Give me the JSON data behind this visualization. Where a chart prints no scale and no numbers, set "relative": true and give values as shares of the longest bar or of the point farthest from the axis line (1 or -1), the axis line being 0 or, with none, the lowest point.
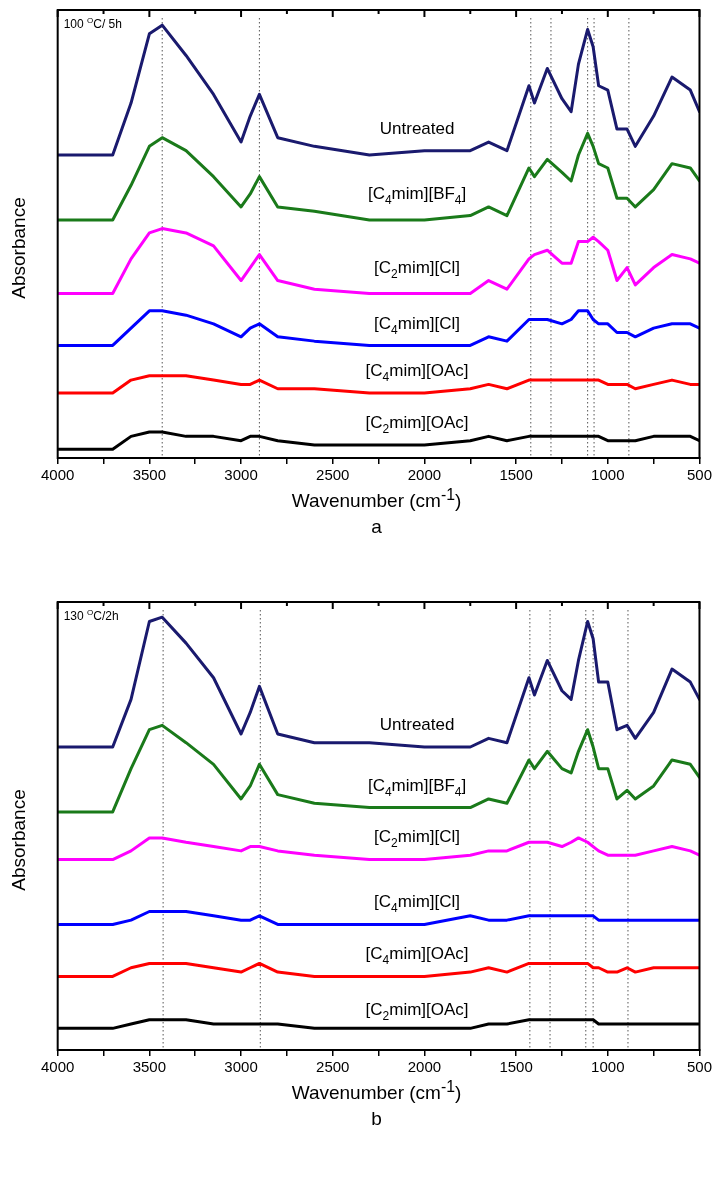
{
  "chart_data": [
    {
      "type": "line",
      "relative": true,
      "xlabel": "Wavenumber (cm$^{-1}$)",
      "ylabel": "Absorbance",
      "annotations": [
        "100 $^{O}$C/ 5h",
        "a"
      ],
      "xlim": [
        4000,
        500
      ],
      "xticks": [
        4000,
        {
          "value": 3750,
          "label": null
        },
        3500,
        {
          "value": 3250,
          "label": null
        },
        3000,
        {
          "value": 2750,
          "label": null
        },
        2500,
        {
          "value": 2250,
          "label": null
        },
        2000,
        {
          "value": 1750,
          "label": null
        },
        1500,
        {
          "value": 1250,
          "label": null
        },
        1000,
        {
          "value": 750,
          "label": null
        },
        500
      ],
      "tick_labels": "x",
      "grid": false,
      "legend": false,
      "marker": "none",
      "line_style": "solid",
      "ref_lines": [
        {
          "axis": "x",
          "value": 3430,
          "color": "#555555",
          "line_style": "dotted"
        },
        {
          "axis": "x",
          "value": 2900,
          "color": "#555555",
          "line_style": "dotted"
        },
        {
          "axis": "x",
          "value": 1420,
          "color": "#555555",
          "line_style": "dotted"
        },
        {
          "axis": "x",
          "value": 1310,
          "color": "#555555",
          "line_style": "dotted"
        },
        {
          "axis": "x",
          "value": 1110,
          "color": "#555555",
          "line_style": "dotted"
        },
        {
          "axis": "x",
          "value": 1075,
          "color": "#555555",
          "line_style": "dotted"
        },
        {
          "axis": "x",
          "value": 885,
          "color": "#555555",
          "line_style": "dotted"
        }
      ],
      "x": [
        4000,
        3700,
        3600,
        3500,
        3430,
        3300,
        3150,
        3000,
        2950,
        2900,
        2800,
        2600,
        2300,
        2000,
        1750,
        1650,
        1550,
        1430,
        1400,
        1330,
        1250,
        1200,
        1160,
        1110,
        1080,
        1050,
        1000,
        950,
        895,
        850,
        750,
        650,
        550,
        500
      ],
      "series": [
        {
          "name": "Untreated",
          "color": "#1a1a6e",
          "values": [
            0.7,
            0.7,
            0.82,
            0.98,
            1.0,
            0.93,
            0.84,
            0.73,
            0.79,
            0.84,
            0.74,
            0.72,
            0.7,
            0.71,
            0.71,
            0.73,
            0.71,
            0.86,
            0.82,
            0.9,
            0.83,
            0.8,
            0.91,
            0.99,
            0.95,
            0.86,
            0.85,
            0.76,
            0.76,
            0.72,
            0.79,
            0.88,
            0.85,
            0.8
          ]
        },
        {
          "name": "[C$_{4}$mim][BF$_{4}$]",
          "color": "#1a7a1a",
          "values": [
            0.55,
            0.55,
            0.63,
            0.72,
            0.74,
            0.71,
            0.65,
            0.58,
            0.61,
            0.65,
            0.58,
            0.57,
            0.55,
            0.55,
            0.56,
            0.58,
            0.56,
            0.67,
            0.65,
            0.69,
            0.66,
            0.64,
            0.7,
            0.75,
            0.72,
            0.68,
            0.67,
            0.6,
            0.6,
            0.58,
            0.62,
            0.68,
            0.67,
            0.64
          ]
        },
        {
          "name": "[C$_{2}$mim][Cl]",
          "color": "#ff00ff",
          "values": [
            0.38,
            0.38,
            0.46,
            0.52,
            0.53,
            0.52,
            0.49,
            0.41,
            0.44,
            0.47,
            0.41,
            0.39,
            0.38,
            0.38,
            0.38,
            0.41,
            0.39,
            0.46,
            0.47,
            0.48,
            0.45,
            0.45,
            0.5,
            0.5,
            0.51,
            0.5,
            0.48,
            0.41,
            0.44,
            0.4,
            0.44,
            0.47,
            0.46,
            0.45
          ]
        },
        {
          "name": "[C$_{4}$mim][Cl]",
          "color": "#0000ff",
          "values": [
            0.26,
            0.26,
            0.3,
            0.34,
            0.34,
            0.33,
            0.31,
            0.28,
            0.3,
            0.31,
            0.28,
            0.27,
            0.26,
            0.26,
            0.26,
            0.28,
            0.27,
            0.32,
            0.32,
            0.32,
            0.31,
            0.32,
            0.34,
            0.34,
            0.32,
            0.31,
            0.31,
            0.29,
            0.29,
            0.28,
            0.3,
            0.31,
            0.31,
            0.3
          ]
        },
        {
          "name": "[C$_{4}$mim][OAc]",
          "color": "#ff0000",
          "values": [
            0.15,
            0.15,
            0.18,
            0.19,
            0.19,
            0.19,
            0.18,
            0.17,
            0.17,
            0.18,
            0.16,
            0.16,
            0.15,
            0.15,
            0.16,
            0.17,
            0.16,
            0.18,
            0.18,
            0.18,
            0.18,
            0.18,
            0.18,
            0.18,
            0.18,
            0.18,
            0.17,
            0.17,
            0.17,
            0.16,
            0.17,
            0.18,
            0.17,
            0.17
          ]
        },
        {
          "name": "[C$_{2}$mim][OAc]",
          "color": "#000000",
          "values": [
            0.02,
            0.02,
            0.05,
            0.06,
            0.06,
            0.05,
            0.05,
            0.04,
            0.05,
            0.05,
            0.04,
            0.03,
            0.03,
            0.03,
            0.04,
            0.05,
            0.04,
            0.05,
            0.05,
            0.05,
            0.05,
            0.05,
            0.05,
            0.05,
            0.05,
            0.05,
            0.04,
            0.04,
            0.04,
            0.04,
            0.05,
            0.05,
            0.05,
            0.04
          ]
        }
      ]
    },
    {
      "type": "line",
      "relative": true,
      "xlabel": "Wavenumber (cm$^{-1}$)",
      "ylabel": "Absorbance",
      "annotations": [
        "130 $^{O}$C/2h",
        "b"
      ],
      "xlim": [
        4000,
        500
      ],
      "xticks": [
        4000,
        {
          "value": 3750,
          "label": null
        },
        3500,
        {
          "value": 3250,
          "label": null
        },
        3000,
        {
          "value": 2750,
          "label": null
        },
        2500,
        {
          "value": 2250,
          "label": null
        },
        2000,
        {
          "value": 1750,
          "label": null
        },
        1500,
        {
          "value": 1250,
          "label": null
        },
        1000,
        {
          "value": 750,
          "label": null
        },
        500
      ],
      "tick_labels": "x",
      "grid": false,
      "legend": false,
      "marker": "none",
      "line_style": "solid",
      "ref_lines": [
        {
          "axis": "x",
          "value": 3425,
          "color": "#555555",
          "line_style": "dotted"
        },
        {
          "axis": "x",
          "value": 2895,
          "color": "#555555",
          "line_style": "dotted"
        },
        {
          "axis": "x",
          "value": 1425,
          "color": "#555555",
          "line_style": "dotted"
        },
        {
          "axis": "x",
          "value": 1315,
          "color": "#555555",
          "line_style": "dotted"
        },
        {
          "axis": "x",
          "value": 1120,
          "color": "#555555",
          "line_style": "dotted"
        },
        {
          "axis": "x",
          "value": 1080,
          "color": "#555555",
          "line_style": "dotted"
        },
        {
          "axis": "x",
          "value": 890,
          "color": "#555555",
          "line_style": "dotted"
        }
      ],
      "x": [
        4000,
        3700,
        3600,
        3500,
        3430,
        3300,
        3150,
        3000,
        2950,
        2900,
        2800,
        2600,
        2300,
        2000,
        1750,
        1650,
        1550,
        1430,
        1400,
        1330,
        1250,
        1200,
        1160,
        1110,
        1080,
        1050,
        1000,
        950,
        895,
        850,
        750,
        650,
        550,
        500
      ],
      "series": [
        {
          "name": "Untreated",
          "color": "#1a1a6e",
          "values": [
            0.7,
            0.7,
            0.81,
            0.99,
            1.0,
            0.94,
            0.86,
            0.73,
            0.78,
            0.84,
            0.73,
            0.71,
            0.71,
            0.7,
            0.7,
            0.72,
            0.71,
            0.86,
            0.82,
            0.9,
            0.83,
            0.81,
            0.9,
            0.99,
            0.95,
            0.85,
            0.85,
            0.74,
            0.75,
            0.72,
            0.78,
            0.88,
            0.85,
            0.81
          ]
        },
        {
          "name": "[C$_{4}$mim][BF$_{4}$]",
          "color": "#1a7a1a",
          "values": [
            0.55,
            0.55,
            0.65,
            0.74,
            0.75,
            0.71,
            0.66,
            0.58,
            0.61,
            0.66,
            0.59,
            0.57,
            0.56,
            0.56,
            0.56,
            0.58,
            0.57,
            0.67,
            0.65,
            0.69,
            0.65,
            0.64,
            0.69,
            0.74,
            0.7,
            0.65,
            0.65,
            0.58,
            0.6,
            0.58,
            0.61,
            0.67,
            0.66,
            0.63
          ]
        },
        {
          "name": "[C$_{2}$mim][Cl]",
          "color": "#ff00ff",
          "values": [
            0.44,
            0.44,
            0.46,
            0.49,
            0.49,
            0.48,
            0.47,
            0.46,
            0.47,
            0.47,
            0.46,
            0.45,
            0.44,
            0.44,
            0.45,
            0.46,
            0.46,
            0.48,
            0.48,
            0.48,
            0.47,
            0.48,
            0.49,
            0.48,
            0.47,
            0.46,
            0.45,
            0.45,
            0.45,
            0.45,
            0.46,
            0.47,
            0.46,
            0.45
          ]
        },
        {
          "name": "[C$_{4}$mim][Cl]",
          "color": "#0000ff",
          "values": [
            0.29,
            0.29,
            0.3,
            0.32,
            0.32,
            0.32,
            0.31,
            0.3,
            0.3,
            0.31,
            0.29,
            0.29,
            0.29,
            0.29,
            0.31,
            0.3,
            0.3,
            0.31,
            0.31,
            0.31,
            0.31,
            0.31,
            0.31,
            0.31,
            0.31,
            0.3,
            0.3,
            0.3,
            0.3,
            0.3,
            0.3,
            0.3,
            0.3,
            0.3
          ]
        },
        {
          "name": "[C$_{4}$mim][OAc]",
          "color": "#ff0000",
          "values": [
            0.17,
            0.17,
            0.19,
            0.2,
            0.2,
            0.2,
            0.19,
            0.18,
            0.19,
            0.2,
            0.18,
            0.17,
            0.17,
            0.17,
            0.18,
            0.19,
            0.18,
            0.2,
            0.2,
            0.2,
            0.2,
            0.2,
            0.2,
            0.2,
            0.19,
            0.19,
            0.18,
            0.18,
            0.19,
            0.18,
            0.19,
            0.19,
            0.19,
            0.19
          ]
        },
        {
          "name": "[C$_{2}$mim][OAc]",
          "color": "#000000",
          "values": [
            0.05,
            0.05,
            0.06,
            0.07,
            0.07,
            0.07,
            0.06,
            0.06,
            0.06,
            0.06,
            0.06,
            0.05,
            0.05,
            0.05,
            0.05,
            0.06,
            0.06,
            0.07,
            0.07,
            0.07,
            0.07,
            0.07,
            0.07,
            0.07,
            0.07,
            0.06,
            0.06,
            0.06,
            0.06,
            0.06,
            0.06,
            0.06,
            0.06,
            0.06
          ]
        }
      ]
    }
  ]
}
